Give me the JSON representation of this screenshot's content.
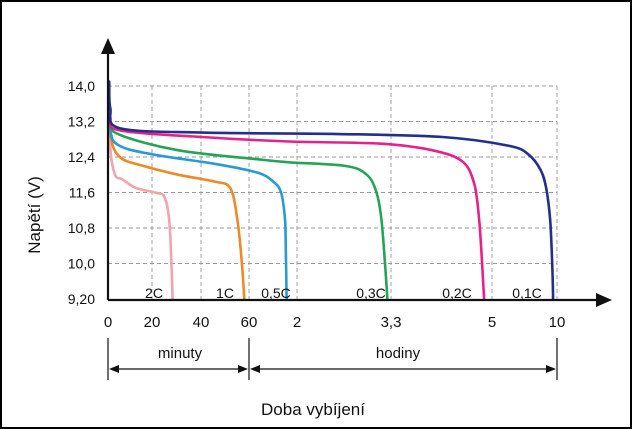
{
  "chart_data": {
    "type": "line",
    "title": "",
    "ylabel": "Napětí (V)",
    "xlabel": "Doba vybíjení",
    "y_ticks": [
      "14,0",
      "13,2",
      "12,4",
      "11,6",
      "10,8",
      "10,0",
      "9,20"
    ],
    "ylim": [
      9.2,
      14.0
    ],
    "x_ticks": [
      "0",
      "20",
      "40",
      "60",
      "2",
      "3,3",
      "5",
      "10"
    ],
    "x_segments": [
      {
        "label": "minuty",
        "range": [
          "0",
          "60"
        ]
      },
      {
        "label": "hodiny",
        "range": [
          "60",
          "10"
        ]
      }
    ],
    "grid": true,
    "series": [
      {
        "name": "2C",
        "color": "#f2a3b0"
      },
      {
        "name": "1C",
        "color": "#ec8a2a"
      },
      {
        "name": "0,5C",
        "color": "#2a9ad4"
      },
      {
        "name": "0,3C",
        "color": "#24a455"
      },
      {
        "name": "0,2C",
        "color": "#e8208a"
      },
      {
        "name": "0,1C",
        "color": "#22308c"
      }
    ]
  }
}
